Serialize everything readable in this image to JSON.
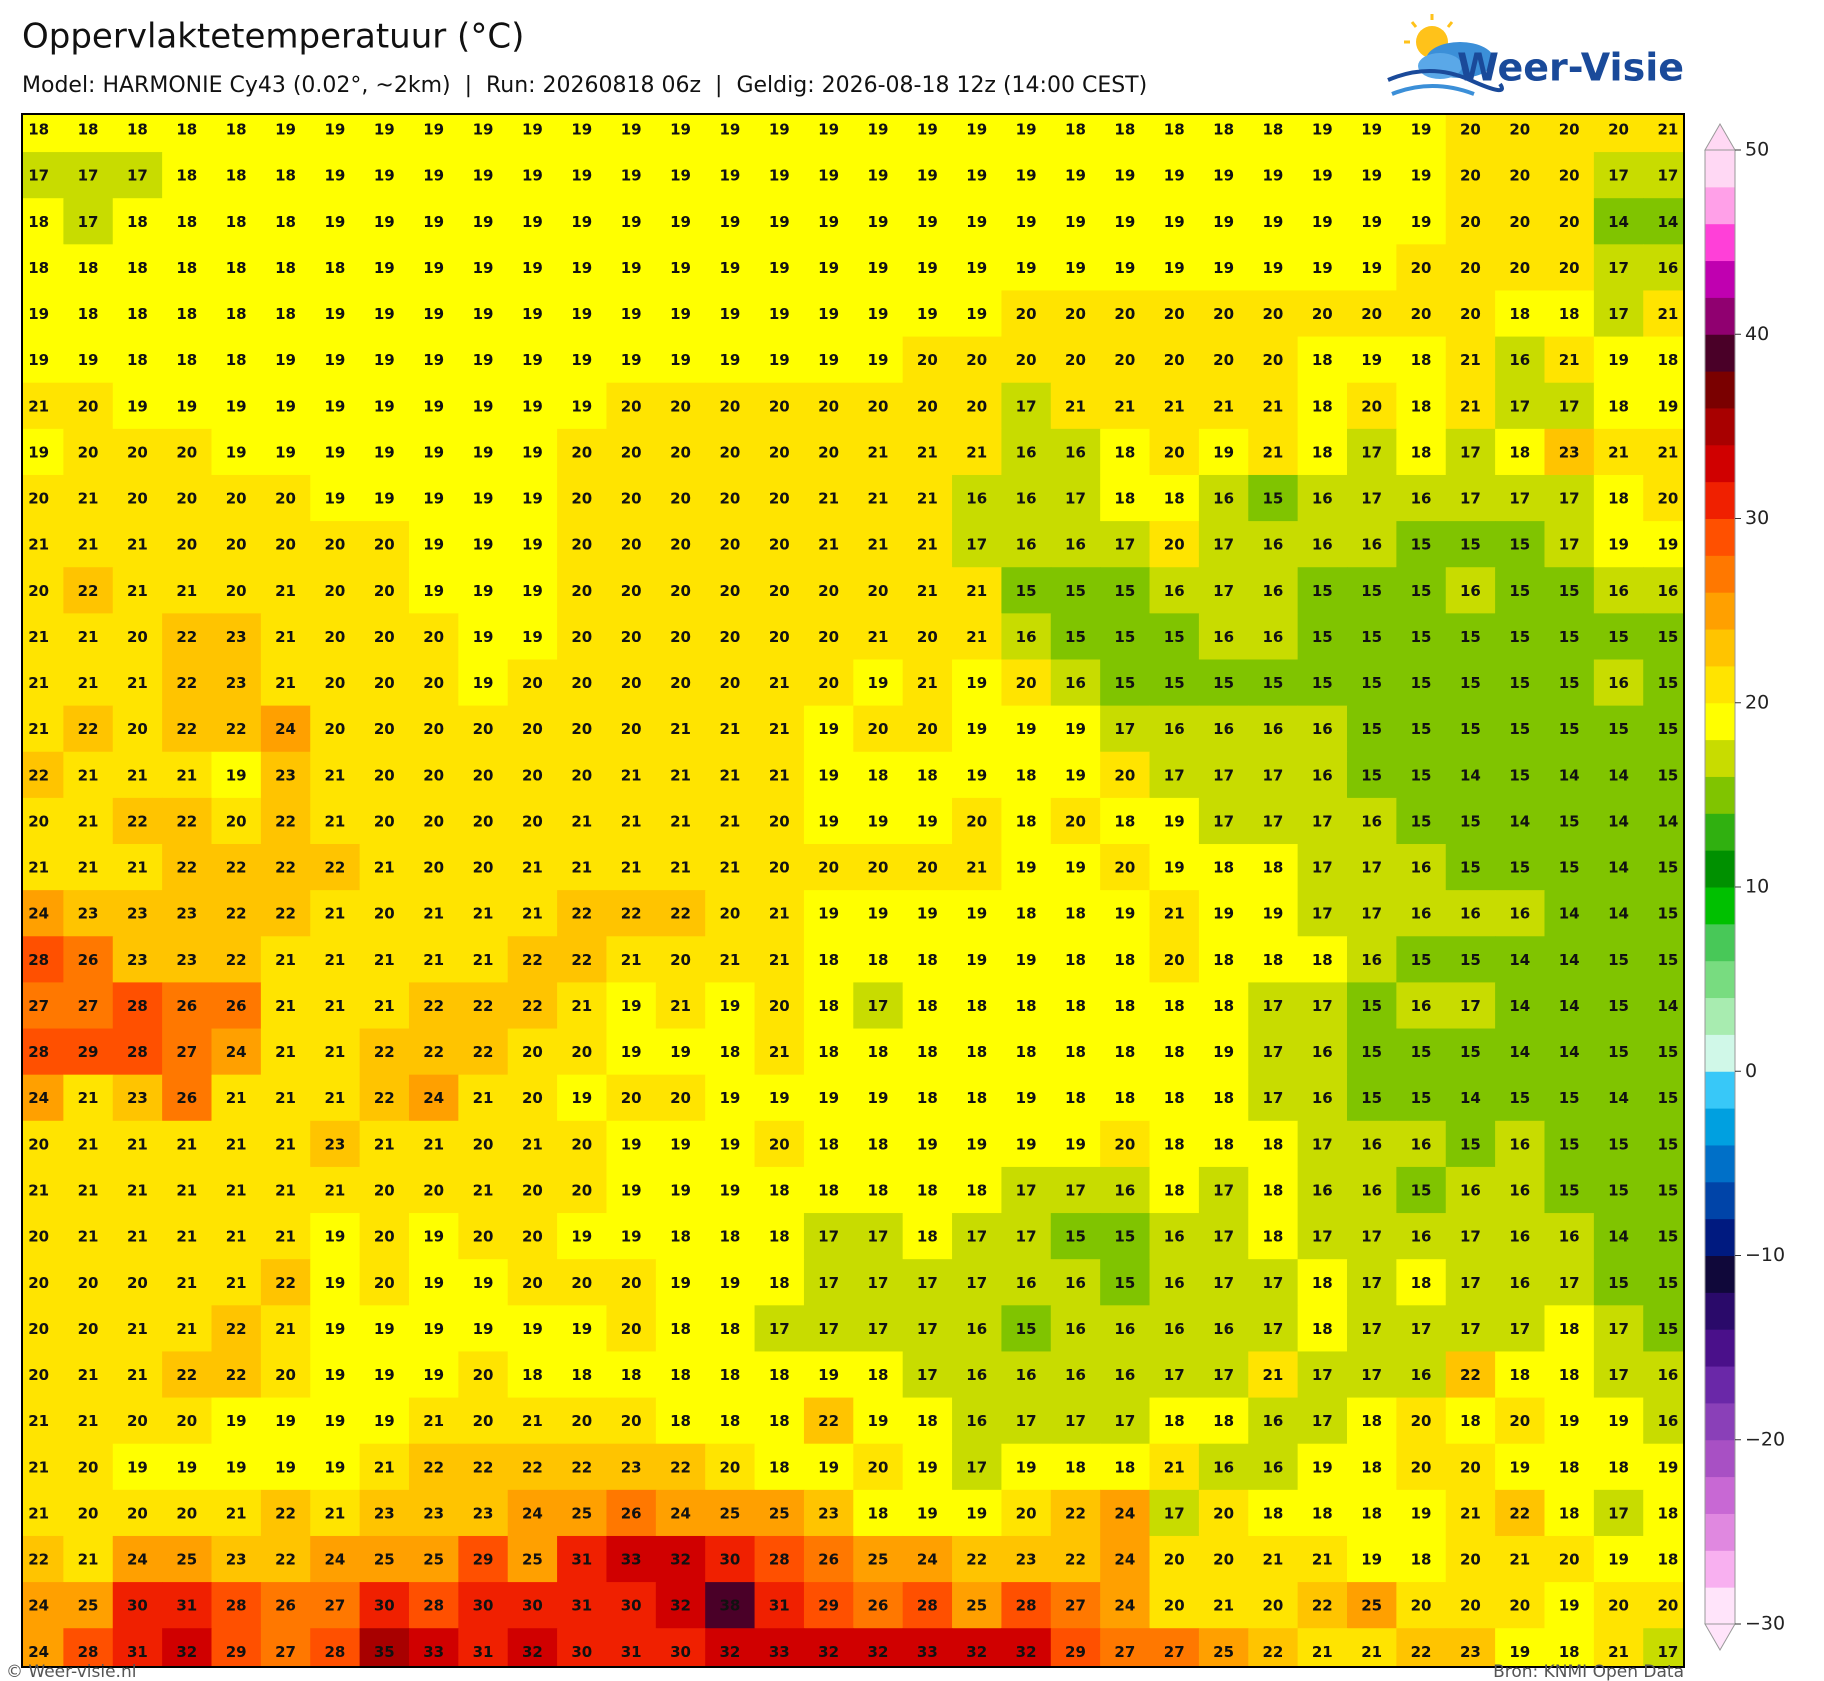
{
  "header": {
    "title": "Oppervlaktetemperatuur (°C)",
    "subtitle": "Model: HARMONIE Cy43 (0.02°, ~2km)  |  Run: 20260818 06z  |  Geldig: 2026-08-18 12z (14:00 CEST)"
  },
  "logo": "Weer-Visie",
  "map": {
    "values": [
      [
        18,
        18,
        18,
        18,
        18,
        19,
        19,
        19,
        19,
        19,
        19,
        19,
        19,
        19,
        19,
        19,
        19,
        19,
        19,
        19,
        19,
        18,
        18,
        18,
        18,
        18,
        19,
        19,
        19,
        20,
        20,
        20,
        20,
        21
      ],
      [
        17,
        17,
        17,
        18,
        18,
        18,
        19,
        19,
        19,
        19,
        19,
        19,
        19,
        19,
        19,
        19,
        19,
        19,
        19,
        19,
        19,
        19,
        19,
        19,
        19,
        19,
        19,
        19,
        19,
        20,
        20,
        20,
        17,
        17
      ],
      [
        18,
        17,
        18,
        18,
        18,
        18,
        19,
        19,
        19,
        19,
        19,
        19,
        19,
        19,
        19,
        19,
        19,
        19,
        19,
        19,
        19,
        19,
        19,
        19,
        19,
        19,
        19,
        19,
        19,
        20,
        20,
        20,
        14,
        14
      ],
      [
        18,
        18,
        18,
        18,
        18,
        18,
        18,
        19,
        19,
        19,
        19,
        19,
        19,
        19,
        19,
        19,
        19,
        19,
        19,
        19,
        19,
        19,
        19,
        19,
        19,
        19,
        19,
        19,
        20,
        20,
        20,
        20,
        17,
        16
      ],
      [
        19,
        18,
        18,
        18,
        18,
        18,
        19,
        19,
        19,
        19,
        19,
        19,
        19,
        19,
        19,
        19,
        19,
        19,
        19,
        19,
        20,
        20,
        20,
        20,
        20,
        20,
        20,
        20,
        20,
        20,
        18,
        18,
        17,
        21
      ],
      [
        19,
        19,
        18,
        18,
        18,
        19,
        19,
        19,
        19,
        19,
        19,
        19,
        19,
        19,
        19,
        19,
        19,
        19,
        20,
        20,
        20,
        20,
        20,
        20,
        20,
        20,
        18,
        19,
        18,
        21,
        16,
        21,
        19,
        18
      ],
      [
        21,
        20,
        19,
        19,
        19,
        19,
        19,
        19,
        19,
        19,
        19,
        19,
        20,
        20,
        20,
        20,
        20,
        20,
        20,
        20,
        17,
        21,
        21,
        21,
        21,
        21,
        18,
        20,
        18,
        21,
        17,
        17,
        18,
        19
      ],
      [
        19,
        20,
        20,
        20,
        19,
        19,
        19,
        19,
        19,
        19,
        19,
        20,
        20,
        20,
        20,
        20,
        20,
        21,
        21,
        21,
        16,
        16,
        18,
        20,
        19,
        21,
        18,
        17,
        18,
        17,
        18,
        23,
        21,
        21
      ],
      [
        20,
        21,
        20,
        20,
        20,
        20,
        19,
        19,
        19,
        19,
        19,
        20,
        20,
        20,
        20,
        20,
        21,
        21,
        21,
        16,
        16,
        17,
        18,
        18,
        16,
        15,
        16,
        17,
        16,
        17,
        17,
        17,
        18,
        20
      ],
      [
        21,
        21,
        21,
        20,
        20,
        20,
        20,
        20,
        19,
        19,
        19,
        20,
        20,
        20,
        20,
        20,
        21,
        21,
        21,
        17,
        16,
        16,
        17,
        20,
        17,
        16,
        16,
        16,
        15,
        15,
        15,
        17,
        19,
        19
      ],
      [
        20,
        22,
        21,
        21,
        20,
        21,
        20,
        20,
        19,
        19,
        19,
        20,
        20,
        20,
        20,
        20,
        20,
        20,
        21,
        21,
        15,
        15,
        15,
        16,
        17,
        16,
        15,
        15,
        15,
        16,
        15,
        15,
        16,
        16
      ],
      [
        21,
        21,
        20,
        22,
        23,
        21,
        20,
        20,
        20,
        19,
        19,
        20,
        20,
        20,
        20,
        20,
        20,
        21,
        20,
        21,
        16,
        15,
        15,
        15,
        16,
        16,
        15,
        15,
        15,
        15,
        15,
        15,
        15,
        15
      ],
      [
        21,
        21,
        21,
        22,
        23,
        21,
        20,
        20,
        20,
        19,
        20,
        20,
        20,
        20,
        20,
        21,
        20,
        19,
        21,
        19,
        20,
        16,
        15,
        15,
        15,
        15,
        15,
        15,
        15,
        15,
        15,
        15,
        16,
        15
      ],
      [
        21,
        22,
        20,
        22,
        22,
        24,
        20,
        20,
        20,
        20,
        20,
        20,
        20,
        21,
        21,
        21,
        19,
        20,
        20,
        19,
        19,
        19,
        17,
        16,
        16,
        16,
        16,
        15,
        15,
        15,
        15,
        15,
        15,
        15
      ],
      [
        22,
        21,
        21,
        21,
        19,
        23,
        21,
        20,
        20,
        20,
        20,
        20,
        21,
        21,
        21,
        21,
        19,
        18,
        18,
        19,
        18,
        19,
        20,
        17,
        17,
        17,
        16,
        15,
        15,
        14,
        15,
        14,
        14,
        15
      ],
      [
        20,
        21,
        22,
        22,
        20,
        22,
        21,
        20,
        20,
        20,
        20,
        21,
        21,
        21,
        21,
        20,
        19,
        19,
        19,
        20,
        18,
        20,
        18,
        19,
        17,
        17,
        17,
        16,
        15,
        15,
        14,
        15,
        14,
        14
      ],
      [
        21,
        21,
        21,
        22,
        22,
        22,
        22,
        21,
        20,
        20,
        21,
        21,
        21,
        21,
        21,
        20,
        20,
        20,
        20,
        21,
        19,
        19,
        20,
        19,
        18,
        18,
        17,
        17,
        16,
        15,
        15,
        15,
        14,
        15
      ],
      [
        24,
        23,
        23,
        23,
        22,
        22,
        21,
        20,
        21,
        21,
        21,
        22,
        22,
        22,
        20,
        21,
        19,
        19,
        19,
        19,
        18,
        18,
        19,
        21,
        19,
        19,
        17,
        17,
        16,
        16,
        16,
        14,
        14,
        15
      ],
      [
        28,
        26,
        23,
        23,
        22,
        21,
        21,
        21,
        21,
        21,
        22,
        22,
        21,
        20,
        21,
        21,
        18,
        18,
        18,
        19,
        19,
        18,
        18,
        20,
        18,
        18,
        18,
        16,
        15,
        15,
        14,
        14,
        15,
        15
      ],
      [
        27,
        27,
        28,
        26,
        26,
        21,
        21,
        21,
        22,
        22,
        22,
        21,
        19,
        21,
        19,
        20,
        18,
        17,
        18,
        18,
        18,
        18,
        18,
        18,
        18,
        17,
        17,
        15,
        16,
        17,
        14,
        14,
        15,
        14
      ],
      [
        28,
        29,
        28,
        27,
        24,
        21,
        21,
        22,
        22,
        22,
        20,
        20,
        19,
        19,
        18,
        21,
        18,
        18,
        18,
        18,
        18,
        18,
        18,
        18,
        19,
        17,
        16,
        15,
        15,
        15,
        14,
        14,
        15,
        15
      ],
      [
        24,
        21,
        23,
        26,
        21,
        21,
        21,
        22,
        24,
        21,
        20,
        19,
        20,
        20,
        19,
        19,
        19,
        19,
        18,
        18,
        19,
        18,
        18,
        18,
        18,
        17,
        16,
        15,
        15,
        14,
        15,
        15,
        14,
        15
      ],
      [
        20,
        21,
        21,
        21,
        21,
        21,
        23,
        21,
        21,
        20,
        21,
        20,
        19,
        19,
        19,
        20,
        18,
        18,
        19,
        19,
        19,
        19,
        20,
        18,
        18,
        18,
        17,
        16,
        16,
        15,
        16,
        15,
        15,
        15
      ],
      [
        21,
        21,
        21,
        21,
        21,
        21,
        21,
        20,
        20,
        21,
        20,
        20,
        19,
        19,
        19,
        18,
        18,
        18,
        18,
        18,
        17,
        17,
        16,
        18,
        17,
        18,
        16,
        16,
        15,
        16,
        16,
        15,
        15,
        15
      ],
      [
        20,
        21,
        21,
        21,
        21,
        21,
        19,
        20,
        19,
        20,
        20,
        19,
        19,
        18,
        18,
        18,
        17,
        17,
        18,
        17,
        17,
        15,
        15,
        16,
        17,
        18,
        17,
        17,
        16,
        17,
        16,
        16,
        14,
        15
      ],
      [
        20,
        20,
        20,
        21,
        21,
        22,
        19,
        20,
        19,
        19,
        20,
        20,
        20,
        19,
        19,
        18,
        17,
        17,
        17,
        17,
        16,
        16,
        15,
        16,
        17,
        17,
        18,
        17,
        18,
        17,
        16,
        17,
        15,
        15
      ],
      [
        20,
        20,
        21,
        21,
        22,
        21,
        19,
        19,
        19,
        19,
        19,
        19,
        20,
        18,
        18,
        17,
        17,
        17,
        17,
        16,
        15,
        16,
        16,
        16,
        16,
        17,
        18,
        17,
        17,
        17,
        17,
        18,
        17,
        15
      ],
      [
        20,
        21,
        21,
        22,
        22,
        20,
        19,
        19,
        19,
        20,
        18,
        18,
        18,
        18,
        18,
        18,
        19,
        18,
        17,
        16,
        16,
        16,
        16,
        17,
        17,
        21,
        17,
        17,
        16,
        22,
        18,
        18,
        17,
        16
      ],
      [
        21,
        21,
        20,
        20,
        19,
        19,
        19,
        19,
        21,
        20,
        21,
        20,
        20,
        18,
        18,
        18,
        22,
        19,
        18,
        16,
        17,
        17,
        17,
        18,
        18,
        16,
        17,
        18,
        20,
        18,
        20,
        19,
        19,
        16
      ],
      [
        21,
        20,
        19,
        19,
        19,
        19,
        19,
        21,
        22,
        22,
        22,
        22,
        23,
        22,
        20,
        18,
        19,
        20,
        19,
        17,
        19,
        18,
        18,
        21,
        16,
        16,
        19,
        18,
        20,
        20,
        19,
        18,
        18,
        19
      ],
      [
        21,
        20,
        20,
        20,
        21,
        22,
        21,
        23,
        23,
        23,
        24,
        25,
        26,
        24,
        25,
        25,
        23,
        18,
        19,
        19,
        20,
        22,
        24,
        17,
        20,
        18,
        18,
        18,
        19,
        21,
        22,
        18,
        17,
        18
      ],
      [
        22,
        21,
        24,
        25,
        23,
        22,
        24,
        25,
        25,
        29,
        25,
        31,
        33,
        32,
        30,
        28,
        26,
        25,
        24,
        22,
        23,
        22,
        24,
        20,
        20,
        21,
        21,
        19,
        18,
        20,
        21,
        20,
        19,
        18
      ],
      [
        24,
        25,
        30,
        31,
        28,
        26,
        27,
        30,
        28,
        30,
        30,
        31,
        30,
        32,
        38,
        31,
        29,
        26,
        28,
        25,
        28,
        27,
        24,
        20,
        21,
        20,
        22,
        25,
        20,
        20,
        20,
        19,
        20,
        20
      ],
      [
        24,
        28,
        31,
        32,
        29,
        27,
        28,
        35,
        33,
        31,
        32,
        30,
        31,
        30,
        32,
        33,
        32,
        32,
        33,
        32,
        32,
        29,
        27,
        27,
        25,
        22,
        21,
        21,
        22,
        23,
        19,
        18,
        21,
        17
      ]
    ]
  },
  "colorbar": {
    "lim": [
      -30,
      50
    ],
    "ticks": [
      50,
      40,
      30,
      20,
      10,
      0,
      {
        "value": -10,
        "label": "−10"
      },
      {
        "value": -20,
        "label": "−20"
      },
      {
        "value": -30,
        "label": "−30"
      }
    ],
    "colors": [
      "#ffe4fa",
      "#f8b0f0",
      "#e088e0",
      "#c868d4",
      "#a850c4",
      "#8a40b8",
      "#6a28a8",
      "#4a108a",
      "#2a0a6a",
      "#10083a",
      "#001a80",
      "#0044a8",
      "#0070c8",
      "#00a0e0",
      "#38c8f8",
      "#d0f8e8",
      "#a8ecb0",
      "#78dc80",
      "#48c858",
      "#00c000",
      "#009000",
      "#30b010",
      "#80c400",
      "#c8dc00",
      "#ffff00",
      "#ffe400",
      "#ffc400",
      "#ffa000",
      "#ff7800",
      "#ff5000",
      "#f02000",
      "#d00000",
      "#a80000",
      "#7a0000",
      "#4a0028",
      "#900070",
      "#c000b0",
      "#ff40d8",
      "#ffa0e8",
      "#ffd8f4"
    ]
  },
  "footer": {
    "left": "© Weer-visie.nl",
    "right": "Bron: KNMI Open Data"
  }
}
